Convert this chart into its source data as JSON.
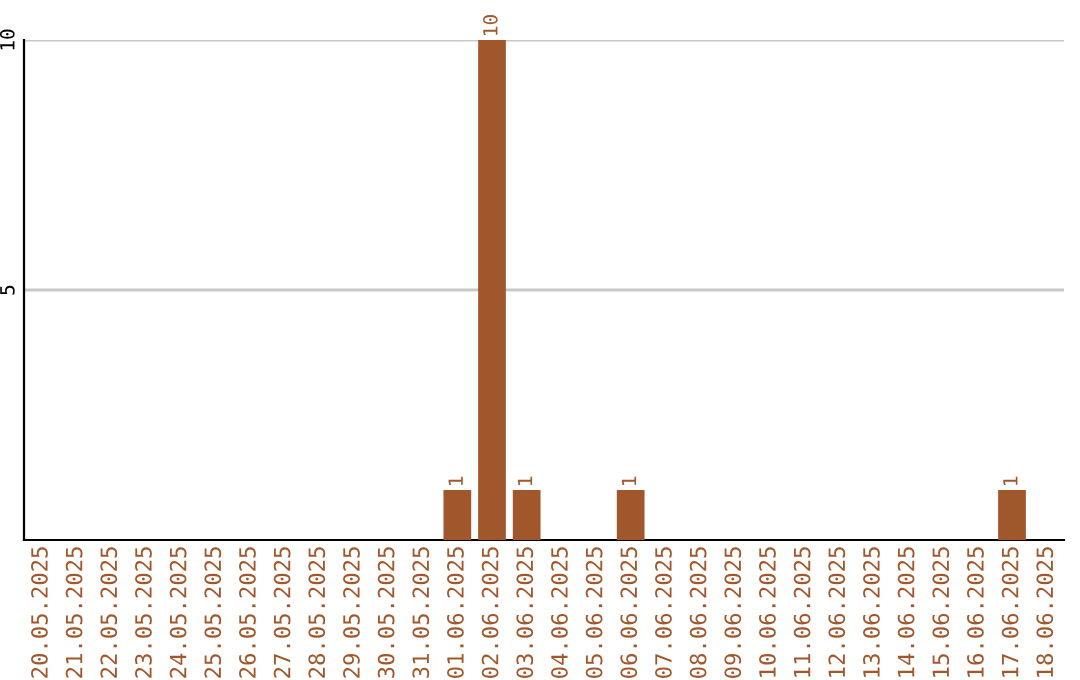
{
  "chart_data": {
    "type": "bar",
    "categories": [
      "20.05.2025",
      "21.05.2025",
      "22.05.2025",
      "23.05.2025",
      "24.05.2025",
      "25.05.2025",
      "26.05.2025",
      "27.05.2025",
      "28.05.2025",
      "29.05.2025",
      "30.05.2025",
      "31.05.2025",
      "01.06.2025",
      "02.06.2025",
      "03.06.2025",
      "04.06.2025",
      "05.06.2025",
      "06.06.2025",
      "07.06.2025",
      "08.06.2025",
      "09.06.2025",
      "10.06.2025",
      "11.06.2025",
      "12.06.2025",
      "13.06.2025",
      "14.06.2025",
      "15.06.2025",
      "16.06.2025",
      "17.06.2025",
      "18.06.2025"
    ],
    "values": [
      0,
      0,
      0,
      0,
      0,
      0,
      0,
      0,
      0,
      0,
      0,
      0,
      1,
      10,
      1,
      0,
      0,
      1,
      0,
      0,
      0,
      0,
      0,
      0,
      0,
      0,
      0,
      0,
      1,
      0
    ],
    "value_labels": [
      null,
      null,
      null,
      null,
      null,
      null,
      null,
      null,
      null,
      null,
      null,
      null,
      "1",
      "10",
      "1",
      null,
      null,
      "1",
      null,
      null,
      null,
      null,
      null,
      null,
      null,
      null,
      null,
      null,
      "1",
      null
    ],
    "color": "#a0572b",
    "ylim": [
      0,
      10
    ],
    "yticks": [
      5,
      10
    ],
    "grid": "y"
  }
}
